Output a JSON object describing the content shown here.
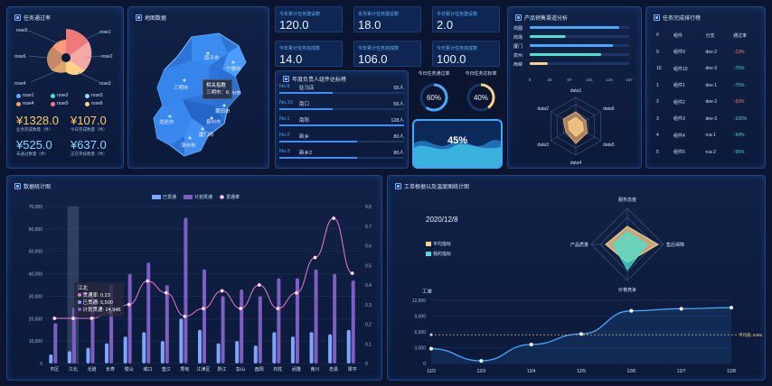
{
  "panel1": {
    "title": "任务通过率",
    "rose_labels": [
      "rose1",
      "rose2",
      "rose3",
      "rose4",
      "rose5",
      "rose6"
    ],
    "legend": [
      {
        "label": "rose1",
        "color": "#5fa8ff"
      },
      {
        "label": "rose2",
        "color": "#4ee0d0"
      },
      {
        "label": "rose3",
        "color": "#9ad6ff"
      },
      {
        "label": "rose4",
        "color": "#e0a46a"
      },
      {
        "label": "rose5",
        "color": "#f07a7a"
      },
      {
        "label": "rose6",
        "color": "#ffd28a"
      }
    ],
    "stats": [
      {
        "v": "¥1328.0",
        "l": "业务完成数量（件）"
      },
      {
        "v": "¥107.0",
        "l": "今日完成数量（件）"
      },
      {
        "v": "¥525.0",
        "l": "未通过数量（件）"
      },
      {
        "v": "¥637.0",
        "l": "正在审核数量（件）"
      }
    ]
  },
  "panel2": {
    "title": "地图数据",
    "tooltip": [
      "相关指数",
      "三明市：6"
    ],
    "cities": [
      "南平市",
      "宁德市",
      "三明市",
      "福州市",
      "莆田市",
      "龙岩市",
      "泉州市",
      "厦门市",
      "漳州市"
    ]
  },
  "kpis": [
    {
      "l": "今年累计任务建设数",
      "v": "120.0"
    },
    {
      "l": "本月累计任务建设数",
      "v": "18.0"
    },
    {
      "l": "今日累计任务建设数",
      "v": "2.0"
    },
    {
      "l": "今年累计任务完成数",
      "v": "14.0"
    },
    {
      "l": "今年累计任务完成数",
      "v": "106.0"
    },
    {
      "l": "今日累计任务完成数",
      "v": "100.0"
    }
  ],
  "rank": {
    "title": "年度负责人组件达标榜",
    "rows": [
      {
        "no": "No.9",
        "name": "驻马店",
        "val": "55人",
        "w": 0.43
      },
      {
        "no": "No.10",
        "name": "南口",
        "val": "55人",
        "w": 0.43
      },
      {
        "no": "No.1",
        "name": "南阳",
        "val": "128人",
        "w": 1.0
      },
      {
        "no": "No.2",
        "name": "新乡",
        "val": "80人",
        "w": 0.62
      },
      {
        "no": "No.3",
        "name": "新乡2",
        "val": "80人",
        "w": 0.62
      }
    ]
  },
  "rings": [
    {
      "label": "今日任务通过率",
      "value": "60%",
      "pct": 0.6
    },
    {
      "label": "今日任务达标率",
      "value": "40%",
      "pct": 0.4
    }
  ],
  "wave": {
    "value": "45%"
  },
  "product": {
    "title": "产品销售渠道分析",
    "cats": [
      "商圈",
      "商场",
      "厦门",
      "泉州",
      "西峡"
    ],
    "vals": [
      150,
      60,
      140,
      120,
      30
    ],
    "ticks": [
      "0",
      "34",
      "67",
      "101",
      "134",
      "167"
    ],
    "radar_labels": [
      "data1",
      "data6",
      "data5",
      "data4",
      "data3",
      "data2"
    ]
  },
  "table": {
    "title": "任务完成排行榜",
    "headers": [
      "#",
      "组件",
      "分支",
      "通过率"
    ],
    "rows": [
      [
        "9",
        "组件9",
        "dev-2",
        "↓13%"
      ],
      [
        "10",
        "组件10",
        "dev-3",
        "↑76%"
      ],
      [
        "1",
        "组件1",
        "dev-1",
        "↑75%"
      ],
      [
        "2",
        "组件2",
        "dev-2",
        "↓63%"
      ],
      [
        "3",
        "组件3",
        "dev-3",
        "↑100%"
      ],
      [
        "4",
        "组件4",
        "rca-1",
        "↑94%"
      ],
      [
        "5",
        "组件5",
        "rca-2",
        "↑95%"
      ]
    ]
  },
  "bigchart": {
    "title": "数据统计图",
    "legend": [
      "已贯通",
      "计划贯通",
      "贯通率"
    ],
    "tooltip": [
      "江北",
      "贯通率: 0.23",
      "已贯通: 5,500",
      "计划贯通: 24,945"
    ]
  },
  "rightchart": {
    "title": "工单根据以及温度图统计图",
    "date": "2020/12/8",
    "legend": [
      "平均指标",
      "我的指标"
    ],
    "radar_labels": [
      "服务态度",
      "售后保障",
      "价格竞争",
      "产品质量"
    ],
    "ylabel": "工单",
    "avg_label": "平均值: 5455"
  },
  "chart_data": [
    {
      "type": "bar",
      "title": "",
      "categories": [
        "市区",
        "江北",
        "北碚",
        "长寿",
        "璧山",
        "城口",
        "垫江",
        "秀甸",
        "江津区",
        "黔江",
        "彭山",
        "酉阳",
        "石柱",
        "武隆",
        "南川",
        "忠县",
        "梁平"
      ],
      "series": [
        {
          "name": "已贯通",
          "values": [
            4000,
            5500,
            7000,
            9000,
            12000,
            14000,
            10000,
            20000,
            15000,
            9000,
            10000,
            8000,
            14000,
            12000,
            14000,
            13000,
            15000
          ]
        },
        {
          "name": "计划贯通",
          "values": [
            18000,
            24945,
            30000,
            35000,
            40000,
            45000,
            35000,
            65000,
            42000,
            30000,
            33000,
            30000,
            38000,
            38000,
            42000,
            40000,
            37000
          ]
        },
        {
          "name": "贯通率",
          "values": [
            0.23,
            0.23,
            0.23,
            0.26,
            0.3,
            0.42,
            0.36,
            0.24,
            0.28,
            0.37,
            0.28,
            0.4,
            0.28,
            0.36,
            0.54,
            0.74,
            0.46
          ]
        }
      ],
      "ylim": [
        0,
        70000
      ],
      "y2lim": [
        0,
        0.8
      ]
    },
    {
      "type": "line",
      "title": "",
      "categories": [
        "12/2",
        "12/3",
        "12/4",
        "12/5",
        "12/6",
        "12/7",
        "12/8"
      ],
      "series": [
        {
          "name": "",
          "values": [
            2800,
            500,
            3600,
            5600,
            10000,
            10400,
            10600
          ]
        }
      ],
      "ylim": [
        0,
        12000
      ],
      "avg": 5455
    }
  ]
}
